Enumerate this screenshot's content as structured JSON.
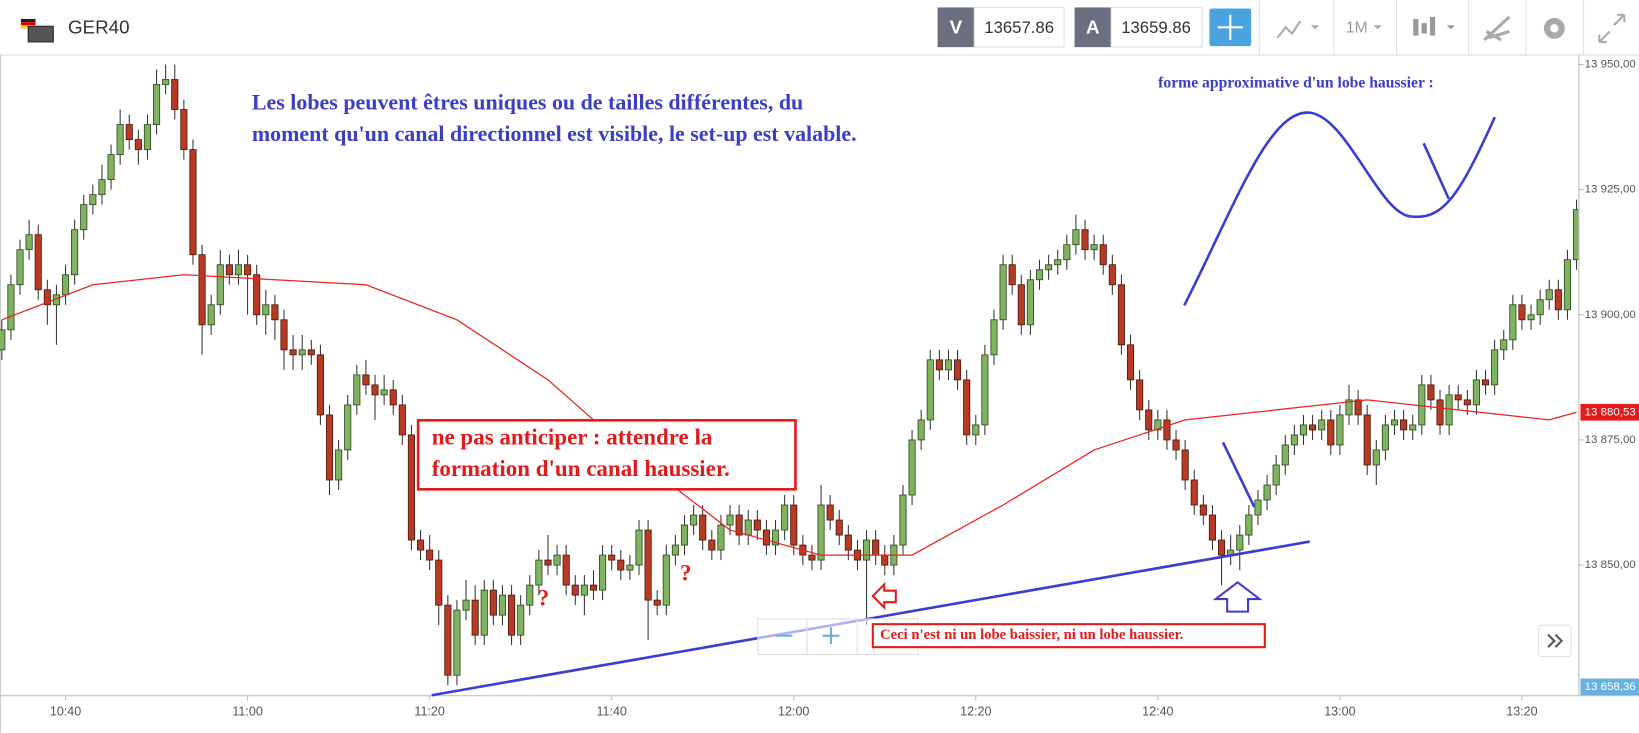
{
  "header": {
    "symbol": "GER40",
    "sell_label": "V",
    "sell_price": 13657.86,
    "buy_label": "A",
    "buy_price": 13659.86,
    "timeframe": "1M"
  },
  "chart_data": {
    "type": "candlestick",
    "candle_fields": [
      "time",
      "open",
      "high",
      "low",
      "close"
    ],
    "up_color": "#7fb35f",
    "down_color": "#b93a22",
    "xlim": [
      632.8,
      806.2
    ],
    "xticks": [
      {
        "value": 640,
        "label": "10:40"
      },
      {
        "value": 660,
        "label": "11:00"
      },
      {
        "value": 680,
        "label": "11:20"
      },
      {
        "value": 700,
        "label": "11:40"
      },
      {
        "value": 720,
        "label": "12:00"
      },
      {
        "value": 740,
        "label": "12:20"
      },
      {
        "value": 760,
        "label": "12:40"
      },
      {
        "value": 780,
        "label": "13:00"
      },
      {
        "value": 800,
        "label": "13:20"
      }
    ],
    "ylim": [
      13824,
      13952
    ],
    "yticks": [
      {
        "value": 13950,
        "label": "13 950,00"
      },
      {
        "value": 13925,
        "label": "13 925,00"
      },
      {
        "value": 13900,
        "label": "13 900,00"
      },
      {
        "value": 13875,
        "label": "13 875,00"
      },
      {
        "value": 13850,
        "label": "13 850,00"
      }
    ],
    "grid": false,
    "candles": [
      [
        633,
        13893,
        13899,
        13891,
        13897
      ],
      [
        634,
        13897,
        13908,
        13895,
        13906
      ],
      [
        635,
        13906,
        13915,
        13904,
        13913
      ],
      [
        636,
        13913,
        13919,
        13911,
        13916
      ],
      [
        637,
        13916,
        13918,
        13903,
        13905
      ],
      [
        638,
        13905,
        13907,
        13898,
        13902
      ],
      [
        639,
        13902,
        13906,
        13894,
        13904
      ],
      [
        640,
        13904,
        13910,
        13902,
        13908
      ],
      [
        641,
        13908,
        13919,
        13906,
        13917
      ],
      [
        642,
        13917,
        13924,
        13915,
        13922
      ],
      [
        643,
        13922,
        13926,
        13920,
        13924
      ],
      [
        644,
        13924,
        13930,
        13922,
        13927
      ],
      [
        645,
        13927,
        13934,
        13925,
        13932
      ],
      [
        646,
        13932,
        13941,
        13930,
        13938
      ],
      [
        647,
        13938,
        13940,
        13933,
        13935
      ],
      [
        648,
        13935,
        13937,
        13930,
        13933
      ],
      [
        649,
        13933,
        13940,
        13931,
        13938
      ],
      [
        650,
        13938,
        13949,
        13936,
        13946
      ],
      [
        651,
        13946,
        13950,
        13944,
        13947
      ],
      [
        652,
        13947,
        13950,
        13939,
        13941
      ],
      [
        653,
        13941,
        13943,
        13931,
        13933
      ],
      [
        654,
        13933,
        13935,
        13910,
        13912
      ],
      [
        655,
        13912,
        13914,
        13892,
        13898
      ],
      [
        656,
        13898,
        13904,
        13896,
        13902
      ],
      [
        657,
        13902,
        13913,
        13900,
        13910
      ],
      [
        658,
        13910,
        13912,
        13906,
        13908
      ],
      [
        659,
        13908,
        13913,
        13906,
        13910
      ],
      [
        660,
        13910,
        13912,
        13900,
        13908
      ],
      [
        661,
        13908,
        13910,
        13898,
        13900
      ],
      [
        662,
        13900,
        13905,
        13896,
        13902
      ],
      [
        663,
        13902,
        13904,
        13895,
        13899
      ],
      [
        664,
        13899,
        13901,
        13889,
        13893
      ],
      [
        665,
        13893,
        13896,
        13889,
        13892
      ],
      [
        666,
        13892,
        13896,
        13889,
        13893
      ],
      [
        667,
        13893,
        13895,
        13890,
        13892
      ],
      [
        668,
        13892,
        13894,
        13878,
        13880
      ],
      [
        669,
        13880,
        13882,
        13864,
        13867
      ],
      [
        670,
        13867,
        13875,
        13865,
        13873
      ],
      [
        671,
        13873,
        13884,
        13871,
        13882
      ],
      [
        672,
        13882,
        13890,
        13880,
        13888
      ],
      [
        673,
        13888,
        13891,
        13884,
        13886
      ],
      [
        674,
        13886,
        13888,
        13879,
        13884
      ],
      [
        675,
        13884,
        13888,
        13882,
        13885
      ],
      [
        676,
        13885,
        13887,
        13880,
        13882
      ],
      [
        677,
        13882,
        13884,
        13874,
        13876
      ],
      [
        678,
        13876,
        13878,
        13853,
        13855
      ],
      [
        679,
        13855,
        13857,
        13851,
        13853
      ],
      [
        680,
        13853,
        13856,
        13849,
        13851
      ],
      [
        681,
        13851,
        13853,
        13838,
        13842
      ],
      [
        682,
        13842,
        13844,
        13826,
        13828
      ],
      [
        683,
        13828,
        13843,
        13826,
        13841
      ],
      [
        684,
        13841,
        13847,
        13839,
        13843
      ],
      [
        685,
        13843,
        13846,
        13834,
        13836
      ],
      [
        686,
        13836,
        13847,
        13834,
        13845
      ],
      [
        687,
        13845,
        13847,
        13838,
        13840
      ],
      [
        688,
        13840,
        13846,
        13838,
        13844
      ],
      [
        689,
        13844,
        13846,
        13834,
        13836
      ],
      [
        690,
        13836,
        13844,
        13834,
        13842
      ],
      [
        691,
        13842,
        13848,
        13840,
        13846
      ],
      [
        692,
        13846,
        13853,
        13844,
        13851
      ],
      [
        693,
        13851,
        13856,
        13848,
        13850
      ],
      [
        694,
        13850,
        13854,
        13848,
        13852
      ],
      [
        695,
        13852,
        13854,
        13844,
        13846
      ],
      [
        696,
        13846,
        13848,
        13842,
        13844
      ],
      [
        697,
        13844,
        13848,
        13840,
        13846
      ],
      [
        698,
        13846,
        13849,
        13843,
        13845
      ],
      [
        699,
        13845,
        13854,
        13843,
        13852
      ],
      [
        700,
        13852,
        13854,
        13849,
        13851
      ],
      [
        701,
        13851,
        13853,
        13847,
        13849
      ],
      [
        702,
        13849,
        13852,
        13847,
        13850
      ],
      [
        703,
        13850,
        13859,
        13848,
        13857
      ],
      [
        704,
        13857,
        13859,
        13835,
        13843
      ],
      [
        705,
        13843,
        13845,
        13840,
        13842
      ],
      [
        706,
        13842,
        13854,
        13840,
        13852
      ],
      [
        707,
        13852,
        13856,
        13850,
        13854
      ],
      [
        708,
        13854,
        13860,
        13852,
        13858
      ],
      [
        709,
        13858,
        13862,
        13856,
        13860
      ],
      [
        710,
        13860,
        13862,
        13853,
        13855
      ],
      [
        711,
        13855,
        13857,
        13851,
        13853
      ],
      [
        712,
        13853,
        13860,
        13851,
        13858
      ],
      [
        713,
        13858,
        13862,
        13856,
        13860
      ],
      [
        714,
        13860,
        13862,
        13854,
        13856
      ],
      [
        715,
        13856,
        13861,
        13854,
        13859
      ],
      [
        716,
        13859,
        13861,
        13855,
        13857
      ],
      [
        717,
        13857,
        13859,
        13852,
        13854
      ],
      [
        718,
        13854,
        13859,
        13852,
        13857
      ],
      [
        719,
        13857,
        13864,
        13855,
        13862
      ],
      [
        720,
        13862,
        13864,
        13852,
        13854
      ],
      [
        721,
        13854,
        13856,
        13850,
        13852
      ],
      [
        722,
        13852,
        13854,
        13849,
        13851
      ],
      [
        723,
        13851,
        13866,
        13849,
        13862
      ],
      [
        724,
        13862,
        13864,
        13857,
        13859
      ],
      [
        725,
        13859,
        13861,
        13854,
        13856
      ],
      [
        726,
        13856,
        13858,
        13851,
        13853
      ],
      [
        727,
        13853,
        13855,
        13849,
        13851
      ],
      [
        728,
        13851,
        13857,
        13838,
        13855
      ],
      [
        729,
        13855,
        13857,
        13850,
        13852
      ],
      [
        730,
        13852,
        13854,
        13848,
        13850
      ],
      [
        731,
        13850,
        13856,
        13848,
        13854
      ],
      [
        732,
        13854,
        13866,
        13852,
        13864
      ],
      [
        733,
        13864,
        13877,
        13862,
        13875
      ],
      [
        734,
        13875,
        13881,
        13873,
        13879
      ],
      [
        735,
        13879,
        13893,
        13877,
        13891
      ],
      [
        736,
        13891,
        13893,
        13887,
        13889
      ],
      [
        737,
        13889,
        13893,
        13887,
        13891
      ],
      [
        738,
        13891,
        13893,
        13885,
        13887
      ],
      [
        739,
        13887,
        13889,
        13874,
        13876
      ],
      [
        740,
        13876,
        13880,
        13874,
        13878
      ],
      [
        741,
        13878,
        13894,
        13876,
        13892
      ],
      [
        742,
        13892,
        13901,
        13890,
        13899
      ],
      [
        743,
        13899,
        13912,
        13897,
        13910
      ],
      [
        744,
        13910,
        13912,
        13904,
        13906
      ],
      [
        745,
        13906,
        13908,
        13896,
        13898
      ],
      [
        746,
        13898,
        13909,
        13896,
        13907
      ],
      [
        747,
        13907,
        13911,
        13905,
        13909
      ],
      [
        748,
        13909,
        13912,
        13907,
        13910
      ],
      [
        749,
        13910,
        13913,
        13908,
        13911
      ],
      [
        750,
        13911,
        13916,
        13909,
        13914
      ],
      [
        751,
        13914,
        13920,
        13912,
        13917
      ],
      [
        752,
        13917,
        13919,
        13911,
        13913
      ],
      [
        753,
        13913,
        13916,
        13911,
        13914
      ],
      [
        754,
        13914,
        13916,
        13908,
        13910
      ],
      [
        755,
        13910,
        13912,
        13904,
        13906
      ],
      [
        756,
        13906,
        13908,
        13892,
        13894
      ],
      [
        757,
        13894,
        13896,
        13885,
        13887
      ],
      [
        758,
        13887,
        13889,
        13879,
        13881
      ],
      [
        759,
        13881,
        13883,
        13875,
        13877
      ],
      [
        760,
        13877,
        13881,
        13875,
        13879
      ],
      [
        761,
        13879,
        13881,
        13873,
        13875
      ],
      [
        762,
        13875,
        13877,
        13871,
        13873
      ],
      [
        763,
        13873,
        13875,
        13865,
        13867
      ],
      [
        764,
        13867,
        13869,
        13860,
        13862
      ],
      [
        765,
        13862,
        13864,
        13858,
        13860
      ],
      [
        766,
        13860,
        13862,
        13853,
        13855
      ],
      [
        767,
        13855,
        13857,
        13846,
        13852
      ],
      [
        768,
        13852,
        13856,
        13850,
        13853
      ],
      [
        769,
        13853,
        13858,
        13849,
        13856
      ],
      [
        770,
        13856,
        13862,
        13854,
        13860
      ],
      [
        771,
        13860,
        13865,
        13858,
        13863
      ],
      [
        772,
        13863,
        13868,
        13861,
        13866
      ],
      [
        773,
        13866,
        13872,
        13864,
        13870
      ],
      [
        774,
        13870,
        13876,
        13868,
        13874
      ],
      [
        775,
        13874,
        13878,
        13872,
        13876
      ],
      [
        776,
        13876,
        13880,
        13874,
        13878
      ],
      [
        777,
        13878,
        13880,
        13875,
        13877
      ],
      [
        778,
        13877,
        13881,
        13875,
        13879
      ],
      [
        779,
        13879,
        13881,
        13872,
        13874
      ],
      [
        780,
        13874,
        13882,
        13872,
        13880
      ],
      [
        781,
        13880,
        13886,
        13878,
        13883
      ],
      [
        782,
        13883,
        13885,
        13878,
        13880
      ],
      [
        783,
        13880,
        13882,
        13868,
        13870
      ],
      [
        784,
        13870,
        13875,
        13866,
        13873
      ],
      [
        785,
        13873,
        13880,
        13871,
        13878
      ],
      [
        786,
        13878,
        13881,
        13876,
        13879
      ],
      [
        787,
        13879,
        13881,
        13875,
        13877
      ],
      [
        788,
        13877,
        13880,
        13875,
        13878
      ],
      [
        789,
        13878,
        13888,
        13876,
        13886
      ],
      [
        790,
        13886,
        13888,
        13881,
        13883
      ],
      [
        791,
        13883,
        13885,
        13876,
        13878
      ],
      [
        792,
        13878,
        13886,
        13876,
        13884
      ],
      [
        793,
        13884,
        13886,
        13881,
        13883
      ],
      [
        794,
        13883,
        13885,
        13880,
        13882
      ],
      [
        795,
        13882,
        13889,
        13880,
        13887
      ],
      [
        796,
        13887,
        13889,
        13884,
        13886
      ],
      [
        797,
        13886,
        13895,
        13884,
        13893
      ],
      [
        798,
        13893,
        13897,
        13891,
        13895
      ],
      [
        799,
        13895,
        13904,
        13893,
        13902
      ],
      [
        800,
        13902,
        13904,
        13897,
        13899
      ],
      [
        801,
        13899,
        13902,
        13897,
        13900
      ],
      [
        802,
        13900,
        13905,
        13898,
        13903
      ],
      [
        803,
        13903,
        13907,
        13901,
        13905
      ],
      [
        804,
        13905,
        13907,
        13899,
        13901
      ],
      [
        805,
        13901,
        13913,
        13899,
        13911
      ],
      [
        806,
        13911,
        13923,
        13909,
        13921
      ]
    ],
    "moving_average": {
      "color": "#e8251f",
      "x": [
        633,
        643,
        653,
        663,
        673,
        683,
        693,
        703,
        713,
        723,
        733,
        743,
        753,
        763,
        773,
        783,
        793,
        803,
        806
      ],
      "values": [
        13899,
        13906,
        13908,
        13907,
        13906,
        13899,
        13887,
        13871,
        13857,
        13852,
        13852,
        13862,
        13873,
        13879,
        13881,
        13883,
        13881,
        13879,
        13880.53
      ]
    },
    "price_tags": [
      {
        "value": 13880.53,
        "label": "13 880,53",
        "color": "#e41b1b"
      },
      {
        "value": 13658.36,
        "label": "13 658,36",
        "color": "#6ab0de"
      }
    ],
    "annotations": [
      "Les lobes peuvent êtres uniques ou de tailles différentes, du",
      "moment qu'un canal directionnel est visible, le set-up est valable.",
      "forme approximative d'un lobe haussier :",
      "ne pas anticiper : attendre la",
      "formation d'un canal haussier.",
      "?",
      "?",
      "Ceci n'est ni un lobe baissier, ni un lobe haussier."
    ]
  }
}
